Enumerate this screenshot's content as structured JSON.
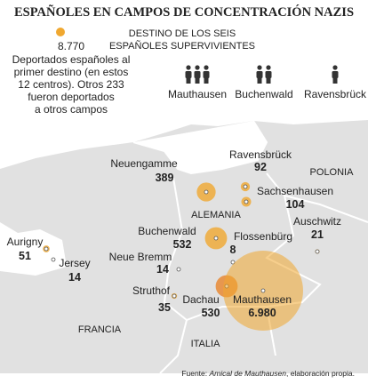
{
  "title": "ESPAÑOLES EN CAMPOS DE CONCENTRACIÓN NAZIS",
  "legend": {
    "value": 8770,
    "label": "8.770",
    "lines": [
      "Deportados españoles al",
      "primer destino (en estos",
      "12 centros). Otros 233",
      "fueron deportados",
      "a otros campos"
    ]
  },
  "survivors": {
    "title": [
      "DESTINO DE LOS SEIS",
      "ESPAÑOLES SUPERVIVIENTES"
    ],
    "items": [
      {
        "name": "Mauthausen",
        "count": 3
      },
      {
        "name": "Buchenwald",
        "count": 2
      },
      {
        "name": "Ravensbrück",
        "count": 1
      }
    ]
  },
  "countries": [
    "POLONIA",
    "ALEMANIA",
    "FRANCIA",
    "ITALIA"
  ],
  "camps": [
    {
      "name": "Neuengamme",
      "value": 389
    },
    {
      "name": "Ravensbrück",
      "value": 92
    },
    {
      "name": "Sachsenhausen",
      "value": 104
    },
    {
      "name": "Auschwitz",
      "value": 21
    },
    {
      "name": "Buchenwald",
      "value": 532
    },
    {
      "name": "Flossenbürg",
      "value": 8
    },
    {
      "name": "Aurigny",
      "value": 51
    },
    {
      "name": "Jersey",
      "value": 14
    },
    {
      "name": "Neue Bremm",
      "value": 14
    },
    {
      "name": "Struthof",
      "value": 35
    },
    {
      "name": "Dachau",
      "value": 530
    },
    {
      "name": "Mauthausen",
      "value": 6980,
      "label": "6.980"
    }
  ],
  "source": {
    "prefix": "Fuente: ",
    "italic": "Amical de Mauthausen",
    "suffix": ", elaboración propia."
  }
}
